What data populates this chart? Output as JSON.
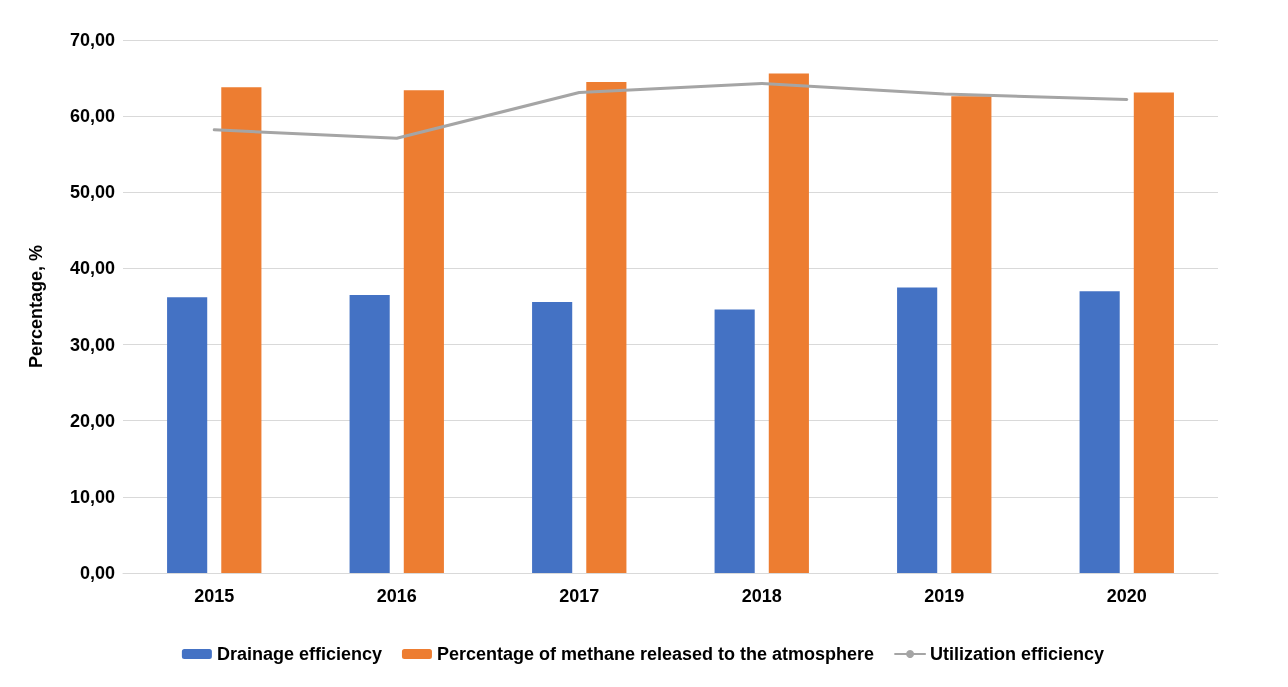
{
  "chart_data": {
    "type": "bar",
    "ylabel": "Percentage, %",
    "categories": [
      "2015",
      "2016",
      "2017",
      "2018",
      "2019",
      "2020"
    ],
    "series": [
      {
        "name": "Drainage efficiency",
        "color": "#4472c4",
        "values": [
          36.2,
          36.5,
          35.6,
          34.6,
          37.5,
          37.0
        ]
      },
      {
        "name": "Percentage of methane released to the atmosphere",
        "color": "#ed7d31",
        "values": [
          63.8,
          63.4,
          64.5,
          65.6,
          62.6,
          63.1
        ]
      },
      {
        "name": "Utilization efficiency",
        "type": "line",
        "color": "#a5a5a5",
        "values": [
          58.2,
          57.1,
          63.1,
          64.3,
          62.9,
          62.2
        ]
      }
    ],
    "ylim": [
      0,
      70
    ],
    "yticks": [
      {
        "value": 0,
        "label": "0,00"
      },
      {
        "value": 10,
        "label": "10,00"
      },
      {
        "value": 20,
        "label": "20,00"
      },
      {
        "value": 30,
        "label": "30,00"
      },
      {
        "value": 40,
        "label": "40,00"
      },
      {
        "value": 50,
        "label": "50,00"
      },
      {
        "value": 60,
        "label": "60,00"
      },
      {
        "value": 70,
        "label": "70,00"
      }
    ],
    "grid": "y",
    "legend": "bottom",
    "marker": "none",
    "line_style": "solid"
  }
}
